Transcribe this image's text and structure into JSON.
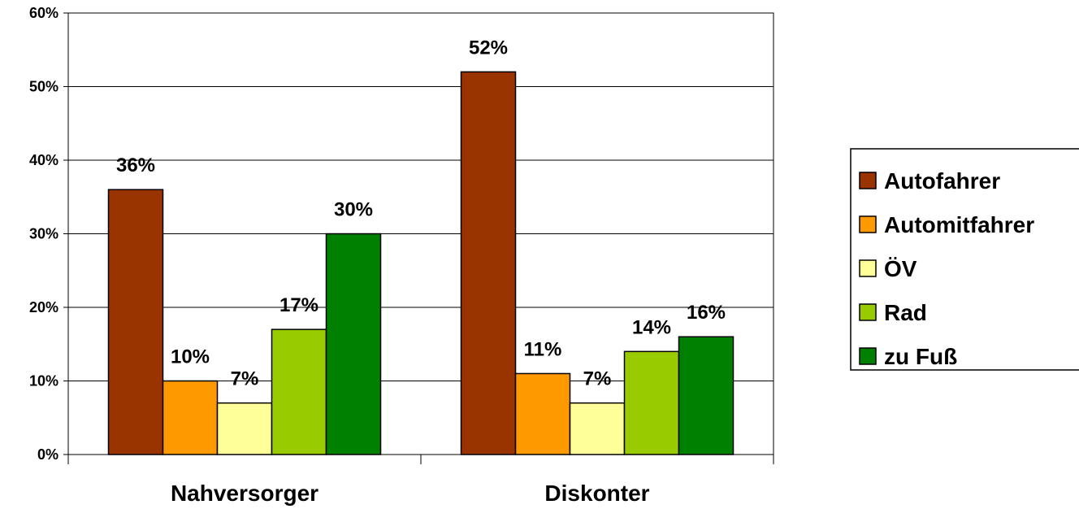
{
  "chart_data": {
    "type": "bar",
    "categories": [
      "Nahversorger",
      "Diskonter"
    ],
    "series": [
      {
        "name": "Autofahrer",
        "values": [
          36,
          52
        ],
        "labels": [
          "36%",
          "52%"
        ],
        "color": "#993300"
      },
      {
        "name": "Automitfahrer",
        "values": [
          10,
          11
        ],
        "labels": [
          "10%",
          "11%"
        ],
        "color": "#FF9900"
      },
      {
        "name": "ÖV",
        "values": [
          7,
          7
        ],
        "labels": [
          "7%",
          "7%"
        ],
        "color": "#FFFF99"
      },
      {
        "name": "Rad",
        "values": [
          17,
          14
        ],
        "labels": [
          "17%",
          "14%"
        ],
        "color": "#99CC00"
      },
      {
        "name": "zu Fuß",
        "values": [
          30,
          16
        ],
        "labels": [
          "30%",
          "16%"
        ],
        "color": "#008000"
      }
    ],
    "yticks": [
      "0%",
      "10%",
      "20%",
      "30%",
      "40%",
      "50%",
      "60%"
    ],
    "ylim": [
      0,
      60
    ],
    "grid": true,
    "legend": "right",
    "title": "",
    "xlabel": "",
    "ylabel": ""
  }
}
